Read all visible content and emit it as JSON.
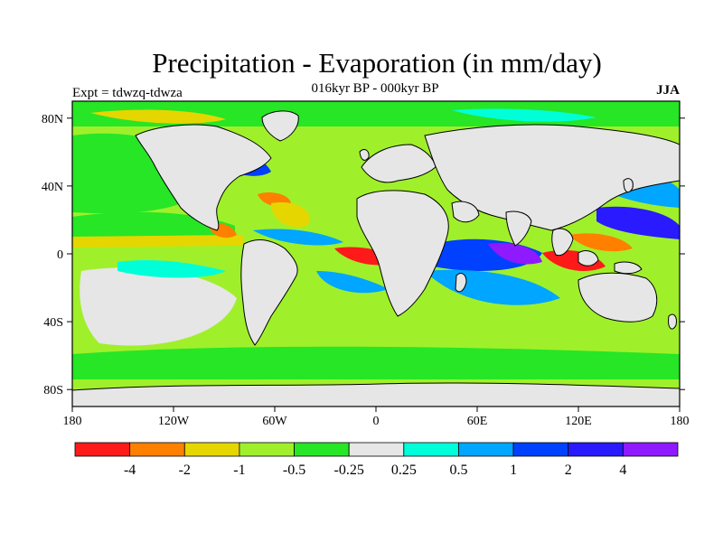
{
  "title": "Precipitation - Evaporation (in mm/day)",
  "subtitle": "016kyr BP - 000kyr BP",
  "left_label": "Expt = tdwzq-tdwza",
  "right_label": "JJA",
  "axes": {
    "lat_ticks": [
      "80N",
      "40N",
      "0",
      "40S",
      "80S"
    ],
    "lon_ticks": [
      "180",
      "120W",
      "60W",
      "0",
      "60E",
      "120E",
      "180"
    ]
  },
  "colorbar": {
    "colors": [
      "#ff1a1a",
      "#ff8000",
      "#e6d600",
      "#9ff02a",
      "#26e626",
      "#e6e6e6",
      "#00ffd9",
      "#00a6ff",
      "#0040ff",
      "#2a1aff",
      "#8f1aff"
    ],
    "labels": [
      "-4",
      "-2",
      "-1",
      "-0.5",
      "-0.25",
      "0.25",
      "0.5",
      "1",
      "2",
      "4"
    ]
  },
  "map_colors": {
    "land": "#e6e6e6",
    "coast": "#000000"
  }
}
